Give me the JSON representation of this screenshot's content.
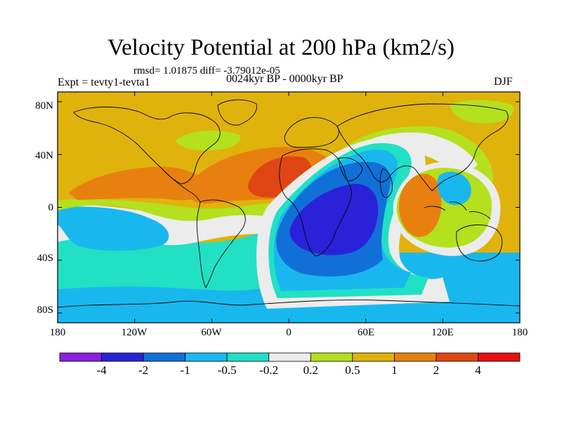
{
  "title": "Velocity Potential at 200 hPa (km2/s)",
  "stats": "rmsd= 1.01875 diff= -3.79012e-05",
  "expt": "Expt = tevty1-tevta1",
  "period": "0024kyr BP - 0000kyr BP",
  "season": "DJF",
  "lat_labels": [
    "80N",
    "40N",
    "0",
    "40S",
    "80S"
  ],
  "lon_labels": [
    "180",
    "120W",
    "60W",
    "0",
    "60E",
    "120E",
    "180"
  ],
  "colorbar": {
    "labels": [
      "-4",
      "-2",
      "-1",
      "-0.5",
      "-0.2",
      "0.2",
      "0.5",
      "1",
      "2",
      "4"
    ],
    "colors": [
      "#8a20e0",
      "#2a22d8",
      "#1070d8",
      "#18b8ee",
      "#22e0c4",
      "#ececec",
      "#b4e01e",
      "#e0b20c",
      "#e88010",
      "#e04614",
      "#e61010"
    ]
  },
  "map": {
    "background_color": "#e0b20c",
    "regions": [
      {
        "name": "southern-ocean-band",
        "color": "#18b8ee"
      },
      {
        "name": "southern-pacific-mid",
        "color": "#22e0c4"
      },
      {
        "name": "southern-pacific-white",
        "color": "#ececec"
      },
      {
        "name": "pacific-green",
        "color": "#b4e01e"
      },
      {
        "name": "east-pacific-cyan",
        "color": "#18b8ee"
      },
      {
        "name": "pacific-orange",
        "color": "#e88010"
      },
      {
        "name": "atlantic-orange",
        "color": "#e88010"
      },
      {
        "name": "north-africa-red",
        "color": "#e04614"
      },
      {
        "name": "asia-green",
        "color": "#b4e01e"
      },
      {
        "name": "asia-white",
        "color": "#ececec"
      },
      {
        "name": "africa-white",
        "color": "#ececec"
      },
      {
        "name": "africa-cyan",
        "color": "#22e0c4"
      },
      {
        "name": "africa-light-blue",
        "color": "#18b8ee"
      },
      {
        "name": "africa-blue",
        "color": "#1070d8"
      },
      {
        "name": "africa-deep-blue",
        "color": "#2a22d8"
      },
      {
        "name": "maritime-white",
        "color": "#ececec"
      },
      {
        "name": "maritime-green",
        "color": "#b4e01e"
      },
      {
        "name": "maritime-orange",
        "color": "#e88010"
      },
      {
        "name": "maritime-cyan",
        "color": "#18b8ee"
      },
      {
        "name": "north-america-green",
        "color": "#b4e01e"
      },
      {
        "name": "siberia-green",
        "color": "#b4e01e"
      }
    ]
  }
}
